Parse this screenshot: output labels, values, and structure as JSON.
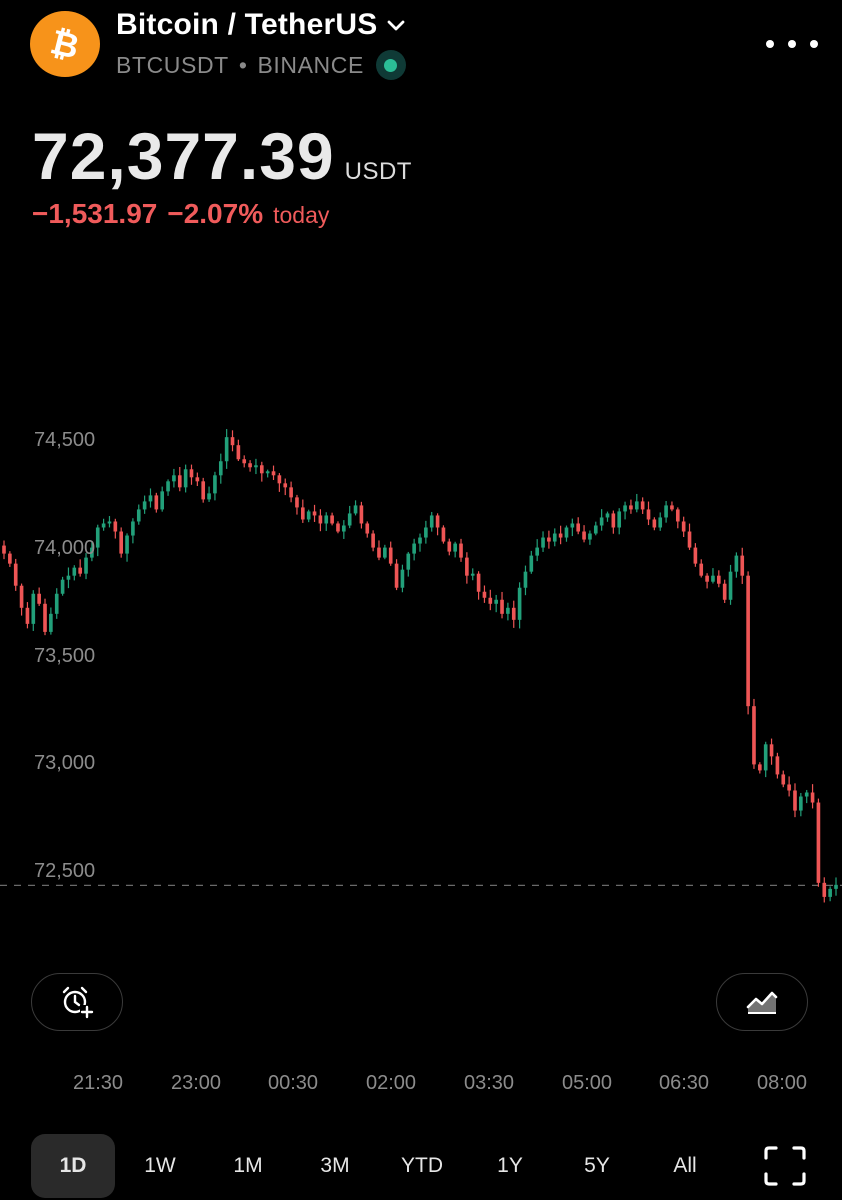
{
  "header": {
    "coin_symbol_glyph": "₿",
    "title": "Bitcoin / TetherUS",
    "ticker": "BTCUSDT",
    "separator": "•",
    "exchange": "BINANCE",
    "logo_color": "#F7931A",
    "status_color": "#2BBD96"
  },
  "quote": {
    "price": "72,377.39",
    "currency": "USDT",
    "change_abs": "−1,531.97",
    "change_pct": "−2.07%",
    "change_label": "today",
    "change_color": "#F05B5B"
  },
  "chart_data": {
    "type": "candlestick",
    "y_tick_labels": [
      "74,500",
      "74,000",
      "73,500",
      "73,000",
      "72,500"
    ],
    "y_ticks": [
      74500,
      74000,
      73500,
      73000,
      72500
    ],
    "ylim": [
      72180,
      74820
    ],
    "x_tick_labels": [
      "21:30",
      "23:00",
      "00:30",
      "02:00",
      "03:30",
      "05:00",
      "06:30",
      "08:00"
    ],
    "last_price_line": 72377.39,
    "up_color": "#22A07A",
    "down_color": "#EE5555",
    "closes": [
      74030,
      73980,
      73870,
      73760,
      73680,
      73830,
      73780,
      73640,
      73730,
      73830,
      73900,
      73920,
      73960,
      73930,
      74010,
      74060,
      74160,
      74180,
      74190,
      74140,
      74030,
      74120,
      74190,
      74250,
      74290,
      74320,
      74250,
      74340,
      74390,
      74420,
      74360,
      74450,
      74410,
      74390,
      74300,
      74330,
      74420,
      74490,
      74610,
      74570,
      74500,
      74480,
      74460,
      74470,
      74430,
      74440,
      74420,
      74380,
      74360,
      74310,
      74260,
      74200,
      74240,
      74220,
      74180,
      74220,
      74180,
      74140,
      74170,
      74230,
      74270,
      74180,
      74130,
      74060,
      74010,
      74060,
      73980,
      73860,
      73950,
      74030,
      74080,
      74110,
      74160,
      74220,
      74160,
      74090,
      74040,
      74080,
      74010,
      73920,
      73930,
      73840,
      73810,
      73780,
      73800,
      73730,
      73760,
      73700,
      73860,
      73940,
      74020,
      74060,
      74110,
      74090,
      74130,
      74110,
      74160,
      74180,
      74140,
      74100,
      74130,
      74170,
      74210,
      74230,
      74160,
      74240,
      74270,
      74250,
      74290,
      74250,
      74200,
      74160,
      74210,
      74270,
      74250,
      74190,
      74140,
      74060,
      73980,
      73920,
      73890,
      73920,
      73880,
      73800,
      73940,
      74020,
      73920,
      73270,
      72980,
      72950,
      73080,
      73020,
      72930,
      72880,
      72850,
      72750,
      72820,
      72840,
      72790,
      72390,
      72320,
      72360,
      72380
    ]
  },
  "controls": {
    "alert_icon": "alarm-plus-icon",
    "indicator_icon": "area-chart-icon",
    "fullscreen_icon": "fullscreen-icon"
  },
  "ranges": [
    {
      "label": "1D",
      "active": true
    },
    {
      "label": "1W",
      "active": false
    },
    {
      "label": "1M",
      "active": false
    },
    {
      "label": "3M",
      "active": false
    },
    {
      "label": "YTD",
      "active": false
    },
    {
      "label": "1Y",
      "active": false
    },
    {
      "label": "5Y",
      "active": false
    },
    {
      "label": "All",
      "active": false
    }
  ]
}
